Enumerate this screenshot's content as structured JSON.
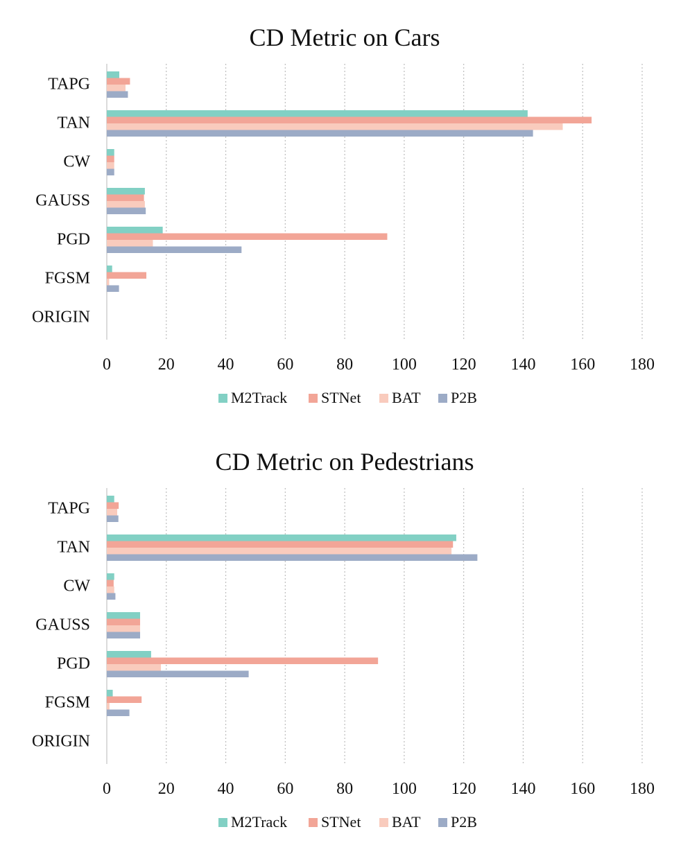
{
  "chart_data": [
    {
      "type": "bar",
      "orientation": "horizontal",
      "title": "CD Metric on Cars",
      "xlabel": "",
      "ylabel": "",
      "xlim": [
        0,
        180
      ],
      "xticks": [
        0,
        20,
        40,
        60,
        80,
        100,
        120,
        140,
        160,
        180
      ],
      "grid": "vertical dotted",
      "legend_position": "bottom",
      "categories": [
        "TAPG",
        "TAN",
        "CW",
        "GAUSS",
        "PGD",
        "FGSM",
        "ORIGIN"
      ],
      "series": [
        {
          "name": "M2Track",
          "color": "#82d0c4",
          "values": [
            4.2,
            141.5,
            2.5,
            12.8,
            18.8,
            1.8,
            0
          ]
        },
        {
          "name": "STNet",
          "color": "#f2a597",
          "values": [
            7.8,
            163,
            2.5,
            12.5,
            94.3,
            13.3,
            0
          ]
        },
        {
          "name": "BAT",
          "color": "#f9cbbd",
          "values": [
            6.3,
            153.3,
            2.5,
            12.8,
            15.5,
            0.8,
            0
          ]
        },
        {
          "name": "P2B",
          "color": "#9cabc6",
          "values": [
            7.1,
            143.3,
            2.5,
            13.1,
            45.3,
            4.1,
            0
          ]
        }
      ]
    },
    {
      "type": "bar",
      "orientation": "horizontal",
      "title": "CD Metric on Pedestrians",
      "xlabel": "",
      "ylabel": "",
      "xlim": [
        0,
        180
      ],
      "xticks": [
        0,
        20,
        40,
        60,
        80,
        100,
        120,
        140,
        160,
        180
      ],
      "grid": "vertical dotted",
      "legend_position": "bottom",
      "categories": [
        "TAPG",
        "TAN",
        "CW",
        "GAUSS",
        "PGD",
        "FGSM",
        "ORIGIN"
      ],
      "series": [
        {
          "name": "M2Track",
          "color": "#82d0c4",
          "values": [
            2.5,
            117.5,
            2.5,
            11.2,
            14.9,
            2.0,
            0
          ]
        },
        {
          "name": "STNet",
          "color": "#f2a597",
          "values": [
            4.0,
            116.4,
            2.3,
            11.2,
            91.2,
            11.7,
            0
          ]
        },
        {
          "name": "BAT",
          "color": "#f9cbbd",
          "values": [
            3.5,
            115.9,
            2.5,
            11.2,
            18.2,
            0.9,
            0
          ]
        },
        {
          "name": "P2B",
          "color": "#9cabc6",
          "values": [
            3.9,
            124.6,
            2.9,
            11.2,
            47.7,
            7.6,
            0
          ]
        }
      ]
    }
  ]
}
